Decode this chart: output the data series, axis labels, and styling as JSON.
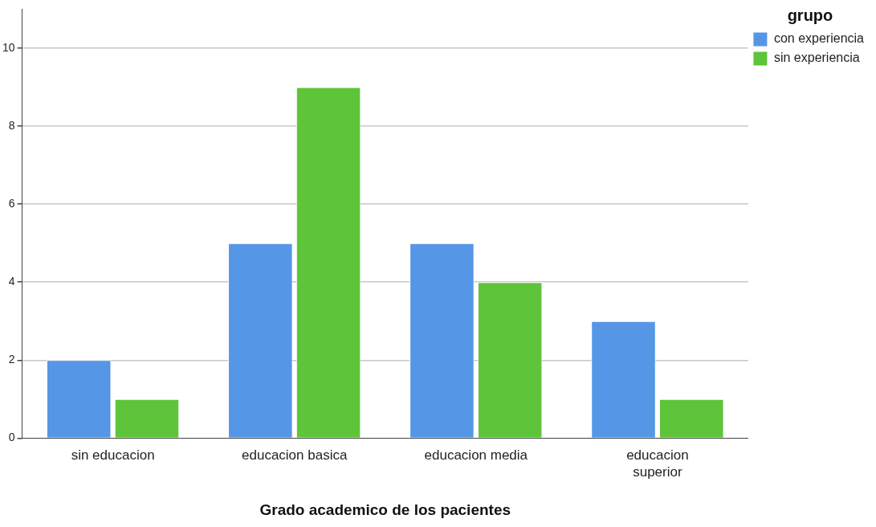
{
  "chart_data": {
    "type": "bar",
    "xlabel": "Grado academico de los pacientes",
    "legend_title": "grupo",
    "categories": [
      "sin educacion",
      "educacion basica",
      "educacion media",
      "educacion superior"
    ],
    "series": [
      {
        "name": "con experiencia",
        "color": "#5596e6",
        "values": [
          2,
          5,
          5,
          3
        ]
      },
      {
        "name": "sin experiencia",
        "color": "#5ec43a",
        "values": [
          1,
          9,
          4,
          1
        ]
      }
    ],
    "ylim": [
      0,
      11
    ],
    "yticks": [
      0,
      2,
      4,
      6,
      8,
      10
    ],
    "grid": "y",
    "legend": "top right"
  }
}
